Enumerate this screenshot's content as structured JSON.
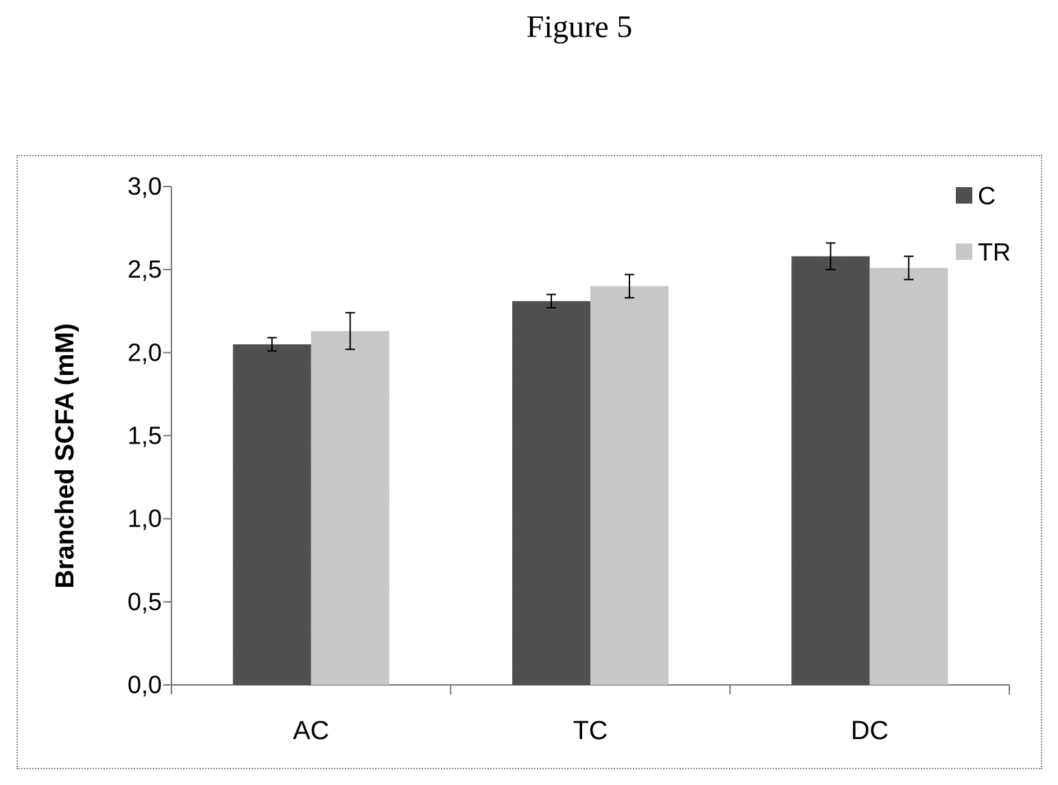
{
  "figure_title": "Figure 5",
  "chart_data": {
    "type": "bar",
    "categories": [
      "AC",
      "TC",
      "DC"
    ],
    "series": [
      {
        "name": "C",
        "values": [
          2.05,
          2.31,
          2.58
        ],
        "errors": [
          0.04,
          0.04,
          0.08
        ],
        "color": "#555555"
      },
      {
        "name": "TR",
        "values": [
          2.13,
          2.4,
          2.51
        ],
        "errors": [
          0.11,
          0.07,
          0.07
        ],
        "color": "#c8c8c8"
      }
    ],
    "ylabel": "Branched SCFA (mM)",
    "xlabel": "",
    "ylim": [
      0,
      3.0
    ],
    "yticks": [
      "0,0",
      "0,5",
      "1,0",
      "1,5",
      "2,0",
      "2,5",
      "3,0"
    ],
    "legend_position": "top-right",
    "grid": false
  }
}
